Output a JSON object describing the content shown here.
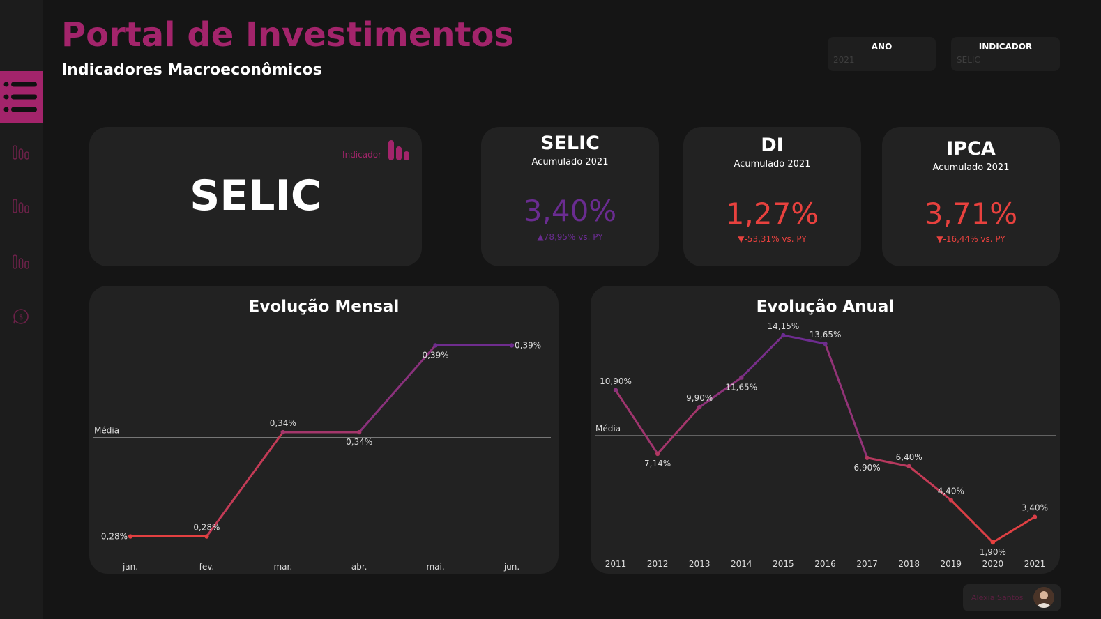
{
  "header": {
    "title": "Portal de Investimentos",
    "subtitle": "Indicadores Macroeconômicos"
  },
  "filters": [
    {
      "label": "ANO",
      "value": "2021"
    },
    {
      "label": "INDICADOR",
      "value": "SELIC"
    }
  ],
  "selected_card": {
    "name": "SELIC",
    "label": "Indicador"
  },
  "kpis": [
    {
      "name": "SELIC",
      "subtitle": "Acumulado 2021",
      "value": "3,40%",
      "delta": "▲78,95%  vs. PY",
      "color": "#6a2c91"
    },
    {
      "name": "DI",
      "subtitle": "Acumulado 2021",
      "value": "1,27%",
      "delta": "▼-53,31%  vs. PY",
      "color": "#e8413e"
    },
    {
      "name": "IPCA",
      "subtitle": "Acumulado 2021",
      "value": "3,71%",
      "delta": "▼-16,44%  vs. PY",
      "color": "#e8413e"
    }
  ],
  "user": {
    "name": "Alexia Santos"
  },
  "colors": {
    "accent": "#a3246b",
    "purple": "#6a2c91",
    "red": "#e8413e"
  },
  "chart_data": [
    {
      "type": "line",
      "title": "Evolução Mensal",
      "categories": [
        "jan.",
        "fev.",
        "mar.",
        "abr.",
        "mai.",
        "jun."
      ],
      "values": [
        0.28,
        0.28,
        0.34,
        0.34,
        0.39,
        0.39
      ],
      "labels": [
        "0,28%",
        "0,28%",
        "0,34%",
        "0,34%",
        "0,39%",
        "0,39%"
      ],
      "reference_line": {
        "label": "Média",
        "value": 0.337
      },
      "ylim": [
        0.275,
        0.395
      ],
      "color_scale": [
        "#e8413e",
        "#6a2c91"
      ]
    },
    {
      "type": "line",
      "title": "Evolução Anual",
      "categories": [
        "2011",
        "2012",
        "2013",
        "2014",
        "2015",
        "2016",
        "2017",
        "2018",
        "2019",
        "2020",
        "2021"
      ],
      "values": [
        10.9,
        7.14,
        9.9,
        11.65,
        14.15,
        13.65,
        6.9,
        6.4,
        4.4,
        1.9,
        3.4
      ],
      "labels": [
        "10,90%",
        "7,14%",
        "9,90%",
        "11,65%",
        "14,15%",
        "13,65%",
        "6,90%",
        "6,40%",
        "4,40%",
        "1,90%",
        "3,40%"
      ],
      "reference_line": {
        "label": "Média",
        "value": 8.22
      },
      "ylim": [
        1.9,
        14.15
      ],
      "color_scale": [
        "#e8413e",
        "#6a2c91"
      ]
    }
  ]
}
